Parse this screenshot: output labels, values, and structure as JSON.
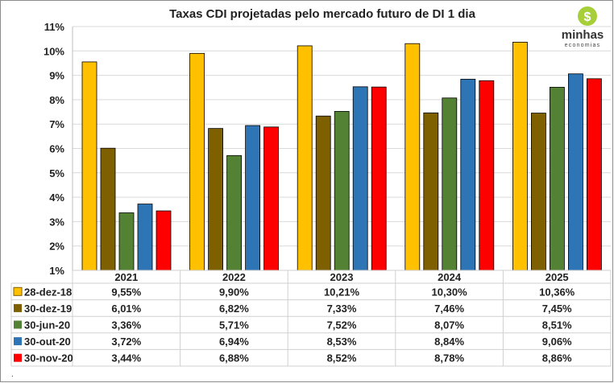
{
  "chart_data": {
    "type": "bar",
    "title": "Taxas CDI projetadas pelo mercado futuro de DI 1 dia",
    "categories": [
      "2021",
      "2022",
      "2023",
      "2024",
      "2025"
    ],
    "ylim": [
      1,
      11
    ],
    "yticks": [
      "1%",
      "2%",
      "3%",
      "4%",
      "5%",
      "6%",
      "7%",
      "8%",
      "9%",
      "10%",
      "11%"
    ],
    "grid": true,
    "legend_placement": "data-table",
    "series": [
      {
        "name": "28-dez-18",
        "color": "#FFC000",
        "values": [
          9.55,
          9.9,
          10.21,
          10.3,
          10.36
        ],
        "labels": [
          "9,55%",
          "9,90%",
          "10,21%",
          "10,30%",
          "10,36%"
        ]
      },
      {
        "name": "30-dez-19",
        "color": "#7F6000",
        "values": [
          6.01,
          6.82,
          7.33,
          7.46,
          7.45
        ],
        "labels": [
          "6,01%",
          "6,82%",
          "7,33%",
          "7,46%",
          "7,45%"
        ]
      },
      {
        "name": "30-jun-20",
        "color": "#548235",
        "values": [
          3.36,
          5.71,
          7.52,
          8.07,
          8.51
        ],
        "labels": [
          "3,36%",
          "5,71%",
          "7,52%",
          "8,07%",
          "8,51%"
        ]
      },
      {
        "name": "30-out-20",
        "color": "#2E75B6",
        "values": [
          3.72,
          6.94,
          8.53,
          8.84,
          9.06
        ],
        "labels": [
          "3,72%",
          "6,94%",
          "8,53%",
          "8,84%",
          "9,06%"
        ]
      },
      {
        "name": "30-nov-20",
        "color": "#FF0000",
        "values": [
          3.44,
          6.88,
          8.52,
          8.78,
          8.86
        ],
        "labels": [
          "3,44%",
          "6,88%",
          "8,52%",
          "8,78%",
          "8,86%"
        ]
      }
    ]
  },
  "logo": {
    "line1": "minhas",
    "line2": "economias",
    "symbol": "$"
  },
  "footnote": "."
}
